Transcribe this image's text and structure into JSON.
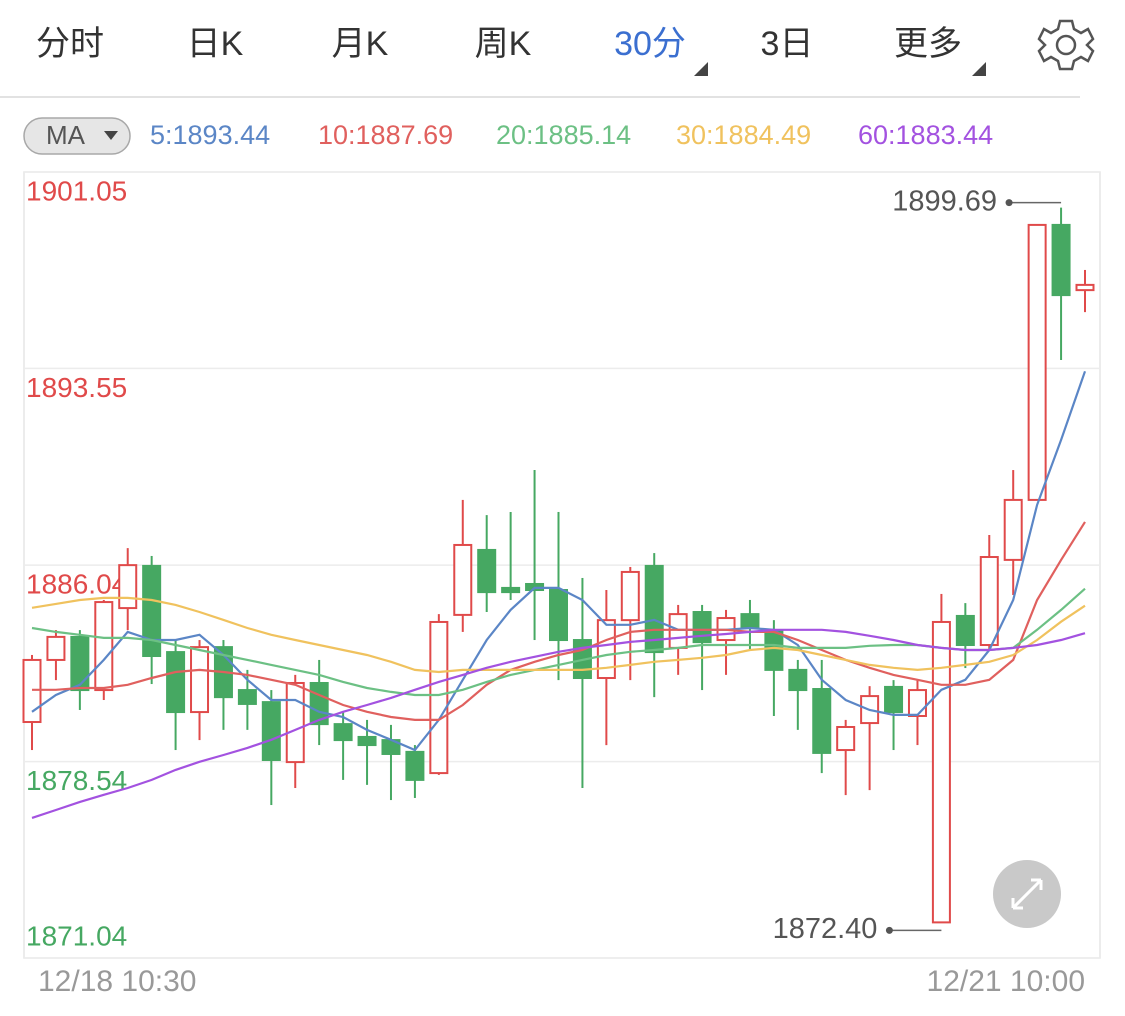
{
  "tabs": [
    "分时",
    "日K",
    "月K",
    "周K",
    "30分",
    "3日",
    "更多"
  ],
  "active_tab": 4,
  "indicator": "MA",
  "chart_data": {
    "type": "candlestick",
    "categories": [
      "12/18 10:30",
      null,
      null,
      null,
      null,
      null,
      null,
      null,
      null,
      null,
      null,
      null,
      null,
      null,
      null,
      null,
      null,
      null,
      null,
      null,
      null,
      null,
      null,
      null,
      null,
      null,
      null,
      null,
      null,
      null,
      null,
      null,
      null,
      null,
      null,
      null,
      null,
      null,
      null,
      null,
      null,
      null,
      null,
      null,
      "12/21 10:00"
    ],
    "open": [
      1880.05,
      1882.42,
      1883.3,
      1881.27,
      1884.4,
      1886.01,
      1882.72,
      1880.43,
      1882.91,
      1881.27,
      1880.81,
      1878.52,
      1881.54,
      1879.97,
      1879.48,
      1879.36,
      1878.91,
      1878.1,
      1884.14,
      1886.62,
      1885.17,
      1885.32,
      1885.09,
      1883.18,
      1881.73,
      1883.94,
      1886.01,
      1882.88,
      1884.25,
      1883.18,
      1884.17,
      1883.56,
      1882.04,
      1881.31,
      1878.98,
      1880.01,
      1881.39,
      1880.28,
      1872.4,
      1884.1,
      1882.99,
      1886.24,
      1888.53,
      1899.03,
      1896.54
    ],
    "high": [
      1882.61,
      1883.56,
      1883.56,
      1884.71,
      1886.69,
      1886.39,
      1883.18,
      1883.18,
      1883.18,
      1882.04,
      1881.27,
      1881.85,
      1882.42,
      1880.43,
      1880.13,
      1879.94,
      1879.17,
      1884.17,
      1888.53,
      1887.95,
      1888.07,
      1889.67,
      1888.07,
      1885.55,
      1885.09,
      1885.97,
      1886.5,
      1884.52,
      1884.52,
      1884.33,
      1884.71,
      1883.94,
      1882.42,
      1882.42,
      1880.13,
      1881.42,
      1881.65,
      1881.65,
      1884.94,
      1884.59,
      1887.19,
      1889.67,
      1899.03,
      1899.69,
      1897.31
    ],
    "low": [
      1878.98,
      1881.65,
      1880.51,
      1880.89,
      1883.56,
      1881.5,
      1878.98,
      1879.36,
      1879.75,
      1879.75,
      1876.88,
      1877.53,
      1879.17,
      1877.84,
      1877.65,
      1877.07,
      1877.15,
      1878.03,
      1883.49,
      1884.25,
      1884.71,
      1883.18,
      1881.65,
      1877.53,
      1879.17,
      1881.65,
      1881.0,
      1881.85,
      1881.27,
      1881.85,
      1882.8,
      1880.28,
      1879.75,
      1878.1,
      1877.26,
      1877.45,
      1878.98,
      1879.17,
      1872.4,
      1882.11,
      1882.8,
      1884.9,
      1888.53,
      1893.87,
      1895.7
    ],
    "close": [
      1882.42,
      1883.3,
      1881.27,
      1884.63,
      1886.04,
      1882.57,
      1880.43,
      1882.91,
      1881.0,
      1880.74,
      1878.6,
      1881.54,
      1879.97,
      1879.36,
      1879.17,
      1878.83,
      1877.84,
      1883.87,
      1886.81,
      1885.01,
      1885.01,
      1885.09,
      1883.18,
      1881.73,
      1883.94,
      1885.78,
      1882.72,
      1884.17,
      1883.1,
      1884.02,
      1883.64,
      1882.04,
      1881.27,
      1878.87,
      1879.86,
      1881.04,
      1880.43,
      1881.27,
      1883.87,
      1882.99,
      1886.35,
      1888.53,
      1899.03,
      1896.35,
      1896.74
    ],
    "up_color": "#e04a4a",
    "down_color": "#46a862",
    "series": [
      {
        "name": "5",
        "label": "5:1893.44",
        "color": "#5b86c6",
        "values": [
          1880.44,
          1881.08,
          1881.47,
          1882.42,
          1883.49,
          1883.18,
          1883.18,
          1883.38,
          1882.61,
          1881.66,
          1880.89,
          1880.89,
          1880.44,
          1880.24,
          1879.75,
          1879.37,
          1878.98,
          1880.13,
          1881.66,
          1883.18,
          1884.33,
          1885.17,
          1885.17,
          1884.71,
          1883.76,
          1883.76,
          1883.95,
          1883.57,
          1883.57,
          1883.57,
          1883.64,
          1883.57,
          1882.99,
          1881.66,
          1880.89,
          1880.51,
          1880.32,
          1880.32,
          1881.28,
          1881.66,
          1882.8,
          1884.71,
          1888.34,
          1890.82,
          1893.44
        ]
      },
      {
        "name": "10",
        "label": "10:1887.69",
        "color": "#e0605e",
        "values": [
          1881.28,
          1881.28,
          1881.35,
          1881.35,
          1881.47,
          1881.73,
          1881.96,
          1882.04,
          1881.96,
          1881.85,
          1881.66,
          1881.47,
          1881.08,
          1880.7,
          1880.44,
          1880.24,
          1880.13,
          1880.13,
          1880.7,
          1881.47,
          1882.04,
          1882.35,
          1882.61,
          1882.8,
          1883.18,
          1883.49,
          1883.57,
          1883.57,
          1883.57,
          1883.57,
          1883.49,
          1883.49,
          1883.18,
          1882.8,
          1882.42,
          1882.12,
          1881.85,
          1881.66,
          1881.47,
          1881.47,
          1881.66,
          1882.42,
          1884.71,
          1886.24,
          1887.69
        ]
      },
      {
        "name": "20",
        "label": "20:1885.14",
        "color": "#6cc084",
        "values": [
          1883.64,
          1883.49,
          1883.38,
          1883.26,
          1883.26,
          1883.18,
          1882.99,
          1882.8,
          1882.61,
          1882.42,
          1882.23,
          1882.04,
          1881.85,
          1881.58,
          1881.35,
          1881.2,
          1881.08,
          1881.08,
          1881.28,
          1881.58,
          1881.85,
          1882.04,
          1882.23,
          1882.42,
          1882.61,
          1882.73,
          1882.8,
          1882.88,
          1882.99,
          1882.99,
          1882.99,
          1882.99,
          1882.88,
          1882.88,
          1882.88,
          1882.96,
          1882.99,
          1882.99,
          1882.88,
          1882.8,
          1882.8,
          1882.88,
          1883.57,
          1884.33,
          1885.14
        ]
      },
      {
        "name": "30",
        "label": "30:1884.49",
        "color": "#f0c25e",
        "values": [
          1884.41,
          1884.56,
          1884.71,
          1884.79,
          1884.79,
          1884.71,
          1884.52,
          1884.25,
          1883.95,
          1883.64,
          1883.38,
          1883.18,
          1882.99,
          1882.8,
          1882.61,
          1882.35,
          1882.04,
          1881.96,
          1882.04,
          1882.04,
          1882.04,
          1882.04,
          1882.04,
          1882.04,
          1882.12,
          1882.23,
          1882.35,
          1882.42,
          1882.5,
          1882.61,
          1882.8,
          1882.88,
          1882.8,
          1882.61,
          1882.42,
          1882.23,
          1882.12,
          1882.04,
          1882.12,
          1882.23,
          1882.35,
          1882.61,
          1883.18,
          1883.88,
          1884.49
        ]
      },
      {
        "name": "60",
        "label": "60:1883.44",
        "color": "#a352e0",
        "values": [
          1876.39,
          1876.69,
          1877.0,
          1877.27,
          1877.53,
          1877.84,
          1878.22,
          1878.53,
          1878.79,
          1879.06,
          1879.37,
          1879.75,
          1880.13,
          1880.44,
          1880.7,
          1880.97,
          1881.28,
          1881.58,
          1881.85,
          1882.12,
          1882.35,
          1882.54,
          1882.73,
          1882.88,
          1882.99,
          1883.11,
          1883.18,
          1883.26,
          1883.34,
          1883.41,
          1883.49,
          1883.57,
          1883.57,
          1883.57,
          1883.49,
          1883.34,
          1883.18,
          1882.99,
          1882.88,
          1882.8,
          1882.8,
          1882.88,
          1882.99,
          1883.18,
          1883.44
        ]
      }
    ],
    "annotations": [
      {
        "label": "1899.69",
        "value": 1899.69
      },
      {
        "label": "1872.40",
        "value": 1872.4
      }
    ],
    "ylim": [
      1871.04,
      1901.05
    ],
    "yticks": [
      1901.05,
      1893.55,
      1886.04,
      1878.54,
      1871.04
    ],
    "grid": true
  }
}
